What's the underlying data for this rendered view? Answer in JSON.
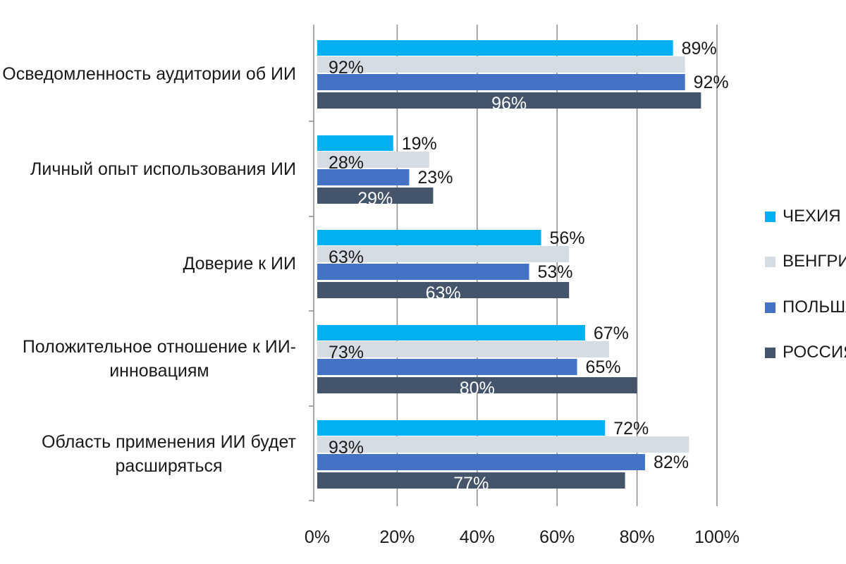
{
  "chart_data": {
    "type": "bar",
    "orientation": "horizontal",
    "title": "",
    "xlabel": "",
    "ylabel": "",
    "xlim": [
      0,
      100
    ],
    "x_ticks": [
      "0%",
      "20%",
      "40%",
      "60%",
      "80%",
      "100%"
    ],
    "grid": true,
    "legend_position": "right",
    "categories": [
      [
        "Осведомленность аудитории об ИИ"
      ],
      [
        "Личный опыт использования ИИ"
      ],
      [
        "Доверие к ИИ"
      ],
      [
        "Положительное отношение к ИИ-",
        "инновациям"
      ],
      [
        "Область применения ИИ будет",
        "расширяться"
      ]
    ],
    "series": [
      {
        "name": "ЧЕХИЯ",
        "color": "#00b0f0",
        "values": [
          89,
          19,
          56,
          67,
          72
        ]
      },
      {
        "name": "ВЕНГРИЯ",
        "color": "#d6dce4",
        "values": [
          92,
          28,
          63,
          73,
          93
        ]
      },
      {
        "name": "ПОЛЬША",
        "color": "#4472c4",
        "values": [
          92,
          23,
          53,
          65,
          82
        ]
      },
      {
        "name": "РОССИЯ",
        "color": "#44546a",
        "values": [
          96,
          29,
          63,
          80,
          77
        ]
      }
    ]
  }
}
